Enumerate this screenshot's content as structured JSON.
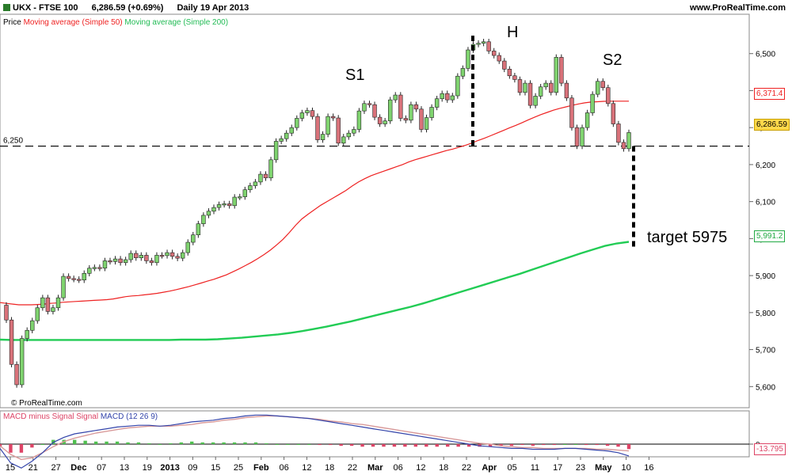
{
  "header": {
    "symbol": "UKX - FTSE 100",
    "quote": "6,286.59 (+0.69%)",
    "period": "Daily  19 Apr 2013",
    "website": "www.ProRealTime.com"
  },
  "legend": {
    "price_label": "Price",
    "ma50_label": "Moving average (Simple 50)",
    "ma200_label": "Moving average (Simple 200)",
    "macd_label1": "MACD minus Signal Signal",
    "macd_label2": "MACD (12 26 9)"
  },
  "credit": "© ProRealTime.com",
  "colors": {
    "up": "#7fd36f",
    "down": "#d9727a",
    "ma50": "#ee2222",
    "ma200": "#22cc55",
    "macd": "#3344aa",
    "signal": "#d99a9a",
    "hist_up": "#4fbf4f",
    "hist_down": "#dd4466"
  },
  "chart_data": {
    "type": "candlestick",
    "ylim": [
      5560,
      6570
    ],
    "y_ticks": [
      "6,500",
      "6,400",
      "6,300",
      "6,200",
      "6,100",
      "6,000",
      "5,900",
      "5,800",
      "5,700",
      "5,600"
    ],
    "x_ticks": [
      "15",
      "21",
      "27",
      "Dec",
      "07",
      "13",
      "19",
      "2013",
      "09",
      "15",
      "25",
      "Feb",
      "06",
      "12",
      "18",
      "22",
      "Mar",
      "06",
      "12",
      "18",
      "22",
      "Apr",
      "05",
      "11",
      "17",
      "23",
      "May",
      "10",
      "16"
    ],
    "level": {
      "value": 6250,
      "label": "6,250"
    },
    "price_tags": {
      "ma50": "6,371.4",
      "last": "6,286.59",
      "ma200": "5,991.2"
    },
    "annotations": [
      "S1",
      "H",
      "S2",
      "target 5975"
    ],
    "target": 5975,
    "close": [
      5780,
      5660,
      5605,
      5730,
      5752,
      5778,
      5813,
      5840,
      5803,
      5813,
      5840,
      5898,
      5892,
      5890,
      5888,
      5906,
      5920,
      5922,
      5920,
      5940,
      5938,
      5945,
      5935,
      5943,
      5960,
      5948,
      5955,
      5940,
      5935,
      5955,
      5954,
      5962,
      5952,
      5947,
      5962,
      5990,
      6010,
      6040,
      6063,
      6074,
      6084,
      6092,
      6094,
      6089,
      6112,
      6113,
      6132,
      6143,
      6153,
      6174,
      6164,
      6213,
      6263,
      6270,
      6285,
      6300,
      6325,
      6340,
      6346,
      6330,
      6267,
      6282,
      6330,
      6326,
      6258,
      6275,
      6285,
      6295,
      6345,
      6365,
      6362,
      6328,
      6310,
      6318,
      6375,
      6388,
      6325,
      6320,
      6362,
      6350,
      6295,
      6327,
      6355,
      6378,
      6392,
      6375,
      6386,
      6439,
      6460,
      6510,
      6525,
      6528,
      6532,
      6507,
      6495,
      6480,
      6458,
      6440,
      6430,
      6395,
      6420,
      6360,
      6385,
      6410,
      6420,
      6395,
      6490,
      6420,
      6380,
      6300,
      6250,
      6300,
      6340,
      6390,
      6425,
      6408,
      6365,
      6310,
      6260,
      6243,
      6286.59
    ],
    "ma50": [
      5827,
      5825,
      5823,
      5821,
      5821,
      5821,
      5822,
      5823,
      5825,
      5826,
      5828,
      5829,
      5830,
      5831,
      5832,
      5833,
      5834,
      5835,
      5837,
      5840,
      5843,
      5845,
      5846,
      5848,
      5850,
      5852,
      5855,
      5858,
      5862,
      5866,
      5870,
      5875,
      5880,
      5885,
      5890,
      5896,
      5902,
      5910,
      5918,
      5927,
      5936,
      5946,
      5957,
      5969,
      5983,
      5998,
      6016,
      6036,
      6053,
      6066,
      6078,
      6090,
      6100,
      6110,
      6120,
      6130,
      6142,
      6153,
      6162,
      6170,
      6176,
      6182,
      6188,
      6194,
      6200,
      6207,
      6213,
      6218,
      6223,
      6228,
      6233,
      6238,
      6242,
      6247,
      6252,
      6258,
      6265,
      6271,
      6278,
      6285,
      6292,
      6299,
      6306,
      6313,
      6321,
      6328,
      6335,
      6341,
      6347,
      6352,
      6356,
      6360,
      6364,
      6367,
      6369,
      6370,
      6371,
      6371.4,
      6371.4,
      6371.4,
      6371.4
    ],
    "ma200": [
      5727,
      5726,
      5726,
      5726,
      5726,
      5726,
      5726,
      5726,
      5726,
      5726,
      5726,
      5726,
      5726,
      5726,
      5726,
      5727,
      5727,
      5727,
      5728,
      5730,
      5732,
      5735,
      5738,
      5741,
      5745,
      5750,
      5756,
      5762,
      5769,
      5776,
      5784,
      5792,
      5800,
      5808,
      5816,
      5825,
      5835,
      5845,
      5855,
      5865,
      5875,
      5885,
      5895,
      5905,
      5916,
      5927,
      5938,
      5949,
      5960,
      5970,
      5980,
      5987,
      5991.2
    ],
    "macd_y_tick": "0",
    "macd_last": "-13.795",
    "macd_line": [
      -5,
      -22,
      -28,
      -20,
      -10,
      2,
      8,
      12,
      14,
      16,
      18,
      20,
      21,
      22,
      22,
      21,
      22,
      24,
      26,
      27,
      28,
      30,
      31,
      33,
      34,
      34,
      33,
      32,
      31,
      30,
      28,
      26,
      24,
      22,
      20,
      18,
      16,
      14,
      12,
      10,
      8,
      6,
      4,
      2,
      0,
      -2,
      -3,
      -4,
      -5,
      -5,
      -6,
      -6,
      -6,
      -5,
      -5,
      -6,
      -7,
      -8,
      -10,
      -13.795
    ],
    "signal_line": [
      -2,
      -12,
      -18,
      -16,
      -10,
      -3,
      3,
      7,
      10,
      13,
      15,
      17,
      19,
      20,
      21,
      21,
      21,
      22,
      23,
      25,
      26,
      28,
      29,
      31,
      32,
      33,
      33,
      32,
      31,
      30,
      29,
      27,
      26,
      24,
      23,
      21,
      19,
      17,
      15,
      13,
      11,
      9,
      7,
      5,
      3,
      1,
      0,
      -2,
      -3,
      -4,
      -4,
      -5,
      -5,
      -5,
      -5,
      -5,
      -6,
      -6,
      -7,
      -8
    ],
    "macd_hist": [
      -3,
      -10,
      -10,
      -4,
      0,
      5,
      5,
      5,
      4,
      3,
      3,
      3,
      2,
      2,
      1,
      0,
      1,
      2,
      3,
      2,
      2,
      2,
      2,
      2,
      2,
      1,
      0,
      0,
      0,
      0,
      -1,
      -1,
      -2,
      -2,
      -3,
      -3,
      -3,
      -3,
      -3,
      -3,
      -3,
      -3,
      -3,
      -3,
      -3,
      -3,
      -3,
      -2,
      -2,
      -1,
      -2,
      -1,
      -1,
      0,
      0,
      -1,
      -1,
      -2,
      -3,
      -5.8
    ]
  }
}
